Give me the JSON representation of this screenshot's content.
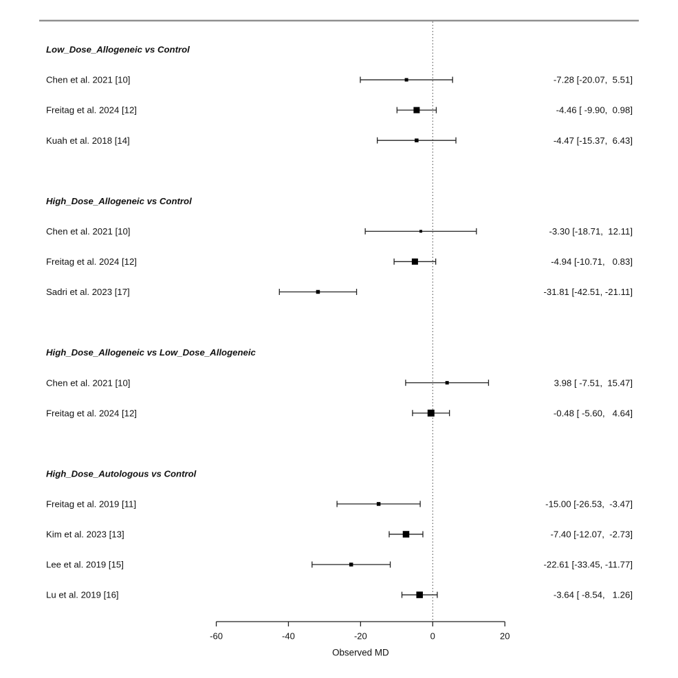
{
  "figure": {
    "top_rule_color": "#8f8f8f",
    "line_color": "#222222",
    "marker_color": "#000000",
    "zero_line_color": "#444444",
    "text_color": "#111111"
  },
  "chart_data": {
    "type": "forest",
    "xlabel": "Observed MD",
    "xlim": [
      -60,
      20
    ],
    "x_ticks": [
      -60,
      -40,
      -20,
      0,
      20
    ],
    "zero_line": 0,
    "legend": "none",
    "grid": false,
    "sections": [
      {
        "label": "Low_Dose_Allogeneic vs Control",
        "studies": [
          {
            "label": "Chen et al. 2021 [10]",
            "md": -7.28,
            "ci_low": -20.07,
            "ci_high": 5.51,
            "marker_size": 5,
            "annotation": "-7.28 [-20.07,  5.51]"
          },
          {
            "label": "Freitag et al. 2024 [12]",
            "md": -4.46,
            "ci_low": -9.9,
            "ci_high": 0.98,
            "marker_size": 9,
            "annotation": "-4.46 [ -9.90,  0.98]"
          },
          {
            "label": "Kuah et al. 2018 [14]",
            "md": -4.47,
            "ci_low": -15.37,
            "ci_high": 6.43,
            "marker_size": 5.5,
            "annotation": "-4.47 [-15.37,  6.43]"
          }
        ]
      },
      {
        "label": "High_Dose_Allogeneic vs Control",
        "studies": [
          {
            "label": "Chen et al. 2021 [10]",
            "md": -3.3,
            "ci_low": -18.71,
            "ci_high": 12.11,
            "marker_size": 4,
            "annotation": "-3.30 [-18.71,  12.11]"
          },
          {
            "label": "Freitag et al. 2024 [12]",
            "md": -4.94,
            "ci_low": -10.71,
            "ci_high": 0.83,
            "marker_size": 9,
            "annotation": "-4.94 [-10.71,   0.83]"
          },
          {
            "label": "Sadri et al. 2023 [17]",
            "md": -31.81,
            "ci_low": -42.51,
            "ci_high": -21.11,
            "marker_size": 5.5,
            "annotation": "-31.81 [-42.51, -21.11]"
          }
        ]
      },
      {
        "label": "High_Dose_Allogeneic vs Low_Dose_Allogeneic",
        "studies": [
          {
            "label": "Chen et al. 2021 [10]",
            "md": 3.98,
            "ci_low": -7.51,
            "ci_high": 15.47,
            "marker_size": 5,
            "annotation": "3.98 [ -7.51,  15.47]"
          },
          {
            "label": "Freitag et al. 2024 [12]",
            "md": -0.48,
            "ci_low": -5.6,
            "ci_high": 4.64,
            "marker_size": 10,
            "annotation": "-0.48 [ -5.60,   4.64]"
          }
        ]
      },
      {
        "label": "High_Dose_Autologous vs Control",
        "studies": [
          {
            "label": "Freitag et al. 2019 [11]",
            "md": -15.0,
            "ci_low": -26.53,
            "ci_high": -3.47,
            "marker_size": 5.5,
            "annotation": "-15.00 [-26.53,  -3.47]"
          },
          {
            "label": "Kim et al. 2023 [13]",
            "md": -7.4,
            "ci_low": -12.07,
            "ci_high": -2.73,
            "marker_size": 9.5,
            "annotation": "-7.40 [-12.07,  -2.73]"
          },
          {
            "label": "Lee et al. 2019 [15]",
            "md": -22.61,
            "ci_low": -33.45,
            "ci_high": -11.77,
            "marker_size": 5.5,
            "annotation": "-22.61 [-33.45, -11.77]"
          },
          {
            "label": "Lu et al. 2019 [16]",
            "md": -3.64,
            "ci_low": -8.54,
            "ci_high": 1.26,
            "marker_size": 9.5,
            "annotation": "-3.64 [ -8.54,   1.26]"
          }
        ]
      }
    ]
  }
}
